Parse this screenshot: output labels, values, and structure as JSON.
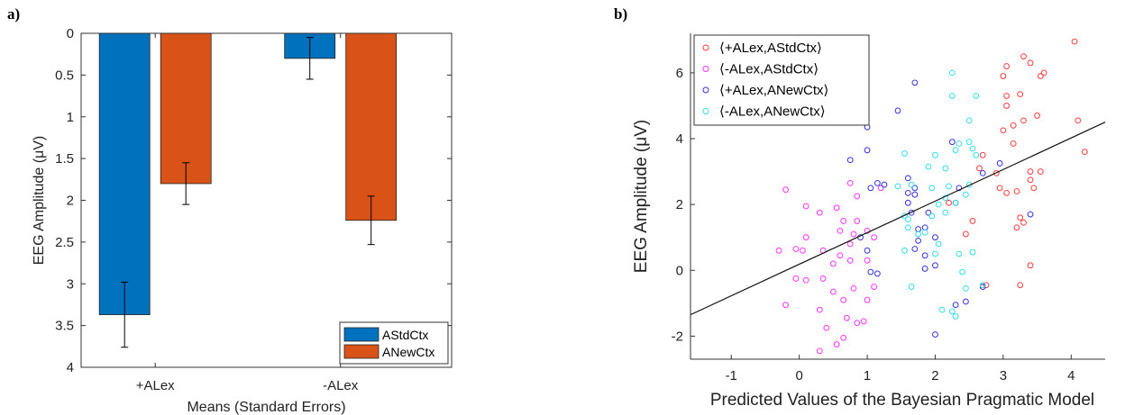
{
  "panels": {
    "a_label": "a)",
    "b_label": "b)"
  },
  "chart_data": [
    {
      "type": "bar",
      "orientation": "reversed-y",
      "title": "",
      "xlabel": "Means (Standard Errors)",
      "ylabel": "EEG Amplitude (μV)",
      "categories": [
        "+ALex",
        "-ALex"
      ],
      "ylim": [
        0,
        4
      ],
      "y_reversed": true,
      "yticks": [
        "0",
        "0.5",
        "1",
        "1.5",
        "2",
        "2.5",
        "3",
        "3.5",
        "4"
      ],
      "legend_position": "bottom-right",
      "series": [
        {
          "name": "AStdCtx",
          "color": "#0072BD",
          "values": [
            3.37,
            0.3
          ],
          "errors": [
            0.39,
            0.25
          ]
        },
        {
          "name": "ANewCtx",
          "color": "#D95319",
          "values": [
            1.8,
            2.24
          ],
          "errors": [
            0.25,
            0.29
          ]
        }
      ]
    },
    {
      "type": "scatter",
      "title": "",
      "xlabel": "Predicted Values of the Bayesian Pragmatic Model",
      "ylabel": "EEG Amplitude (μV)",
      "xlim": [
        -1.6,
        4.5
      ],
      "ylim": [
        -2.7,
        7.2
      ],
      "xticks": [
        "-1",
        "0",
        "1",
        "2",
        "3",
        "4"
      ],
      "yticks": [
        "-2",
        "0",
        "2",
        "4",
        "6"
      ],
      "legend_position": "top-left",
      "fit_line": {
        "x": [
          -1.6,
          4.5
        ],
        "y": [
          -1.35,
          4.5
        ]
      },
      "series": [
        {
          "name": "⟨+ALex,AStdCtx⟩",
          "color": "#FF3B3B",
          "points": [
            [
              4.05,
              6.95
            ],
            [
              3.3,
              6.5
            ],
            [
              3.4,
              6.3
            ],
            [
              3.6,
              6.0
            ],
            [
              3.55,
              5.9
            ],
            [
              3.05,
              6.2
            ],
            [
              3.0,
              5.9
            ],
            [
              3.05,
              5.3
            ],
            [
              3.05,
              5.0
            ],
            [
              3.25,
              5.35
            ],
            [
              3.15,
              4.4
            ],
            [
              3.3,
              4.55
            ],
            [
              3.0,
              4.25
            ],
            [
              3.5,
              4.7
            ],
            [
              4.1,
              4.55
            ],
            [
              3.15,
              3.85
            ],
            [
              4.2,
              3.6
            ],
            [
              2.7,
              3.5
            ],
            [
              2.65,
              3.1
            ],
            [
              2.9,
              2.95
            ],
            [
              3.4,
              3.0
            ],
            [
              3.55,
              3.0
            ],
            [
              3.4,
              2.75
            ],
            [
              3.45,
              2.5
            ],
            [
              2.95,
              2.5
            ],
            [
              3.05,
              2.35
            ],
            [
              3.2,
              2.4
            ],
            [
              2.2,
              2.05
            ],
            [
              2.55,
              1.5
            ],
            [
              3.25,
              1.6
            ],
            [
              3.3,
              1.45
            ],
            [
              3.2,
              1.3
            ],
            [
              2.45,
              1.1
            ],
            [
              3.4,
              0.15
            ],
            [
              3.25,
              -0.45
            ],
            [
              2.75,
              -0.45
            ]
          ]
        },
        {
          "name": "⟨-ALex,AStdCtx⟩",
          "color": "#FF33FF",
          "points": [
            [
              -0.2,
              2.45
            ],
            [
              0.1,
              1.95
            ],
            [
              0.3,
              1.75
            ],
            [
              0.55,
              1.9
            ],
            [
              0.65,
              1.5
            ],
            [
              0.85,
              1.5
            ],
            [
              0.6,
              1.2
            ],
            [
              0.8,
              1.1
            ],
            [
              1.0,
              1.2
            ],
            [
              1.1,
              1.0
            ],
            [
              0.1,
              1.0
            ],
            [
              -0.3,
              0.6
            ],
            [
              -0.05,
              0.65
            ],
            [
              0.05,
              0.6
            ],
            [
              0.35,
              0.6
            ],
            [
              0.6,
              0.45
            ],
            [
              0.75,
              0.8
            ],
            [
              0.5,
              0.2
            ],
            [
              0.75,
              0.3
            ],
            [
              1.0,
              0.3
            ],
            [
              0.35,
              -0.25
            ],
            [
              0.1,
              -0.3
            ],
            [
              -0.05,
              -0.25
            ],
            [
              0.5,
              -0.65
            ],
            [
              0.8,
              -0.55
            ],
            [
              1.1,
              -0.5
            ],
            [
              0.65,
              -0.9
            ],
            [
              1.0,
              -0.9
            ],
            [
              -0.2,
              -1.05
            ],
            [
              0.3,
              -1.2
            ],
            [
              0.7,
              -1.45
            ],
            [
              0.85,
              -1.6
            ],
            [
              0.95,
              -1.55
            ],
            [
              0.4,
              -1.75
            ],
            [
              0.65,
              -2.05
            ],
            [
              0.55,
              -2.25
            ],
            [
              0.3,
              -2.45
            ],
            [
              0.85,
              2.25
            ],
            [
              0.75,
              2.65
            ],
            [
              1.2,
              2.5
            ]
          ]
        },
        {
          "name": "⟨+ALex,ANewCtx⟩",
          "color": "#3333DD",
          "points": [
            [
              1.7,
              5.7
            ],
            [
              1.0,
              4.35
            ],
            [
              1.45,
              4.85
            ],
            [
              1.0,
              3.65
            ],
            [
              2.25,
              3.9
            ],
            [
              1.05,
              2.5
            ],
            [
              1.15,
              2.65
            ],
            [
              1.25,
              2.6
            ],
            [
              1.6,
              2.8
            ],
            [
              1.7,
              2.5
            ],
            [
              0.75,
              3.35
            ],
            [
              1.6,
              2.35
            ],
            [
              1.7,
              2.3
            ],
            [
              1.6,
              2.05
            ],
            [
              1.65,
              1.75
            ],
            [
              1.9,
              1.75
            ],
            [
              2.3,
              2.05
            ],
            [
              2.35,
              2.5
            ],
            [
              2.7,
              2.95
            ],
            [
              2.95,
              3.25
            ],
            [
              3.4,
              1.7
            ],
            [
              1.75,
              1.25
            ],
            [
              1.85,
              1.3
            ],
            [
              2.0,
              1.0
            ],
            [
              1.75,
              0.9
            ],
            [
              1.7,
              0.65
            ],
            [
              1.85,
              0.45
            ],
            [
              2.0,
              0.15
            ],
            [
              1.85,
              0.05
            ],
            [
              1.05,
              -0.05
            ],
            [
              1.15,
              -0.1
            ],
            [
              2.0,
              -1.95
            ],
            [
              2.7,
              -0.5
            ],
            [
              2.45,
              -0.95
            ],
            [
              2.3,
              -1.05
            ],
            [
              1.0,
              0.6
            ],
            [
              0.9,
              1.0
            ]
          ]
        },
        {
          "name": "⟨-ALex,ANewCtx⟩",
          "color": "#33DDEE",
          "points": [
            [
              2.25,
              6.0
            ],
            [
              2.25,
              5.3
            ],
            [
              2.6,
              5.3
            ],
            [
              2.5,
              4.55
            ],
            [
              2.35,
              3.85
            ],
            [
              2.5,
              3.9
            ],
            [
              2.0,
              3.5
            ],
            [
              2.55,
              3.7
            ],
            [
              2.6,
              3.5
            ],
            [
              2.3,
              3.65
            ],
            [
              1.55,
              3.55
            ],
            [
              1.9,
              3.15
            ],
            [
              2.15,
              3.1
            ],
            [
              1.45,
              2.55
            ],
            [
              1.65,
              2.6
            ],
            [
              2.2,
              2.55
            ],
            [
              2.5,
              2.6
            ],
            [
              2.45,
              2.3
            ],
            [
              1.95,
              2.5
            ],
            [
              2.15,
              2.2
            ],
            [
              2.3,
              2.05
            ],
            [
              2.05,
              2.0
            ],
            [
              2.15,
              1.75
            ],
            [
              1.95,
              1.65
            ],
            [
              1.55,
              1.65
            ],
            [
              1.6,
              1.55
            ],
            [
              1.6,
              1.3
            ],
            [
              1.75,
              1.1
            ],
            [
              1.85,
              1.15
            ],
            [
              2.05,
              0.8
            ],
            [
              1.55,
              0.6
            ],
            [
              2.35,
              0.5
            ],
            [
              2.55,
              0.55
            ],
            [
              2.4,
              -0.05
            ],
            [
              2.45,
              -0.55
            ],
            [
              2.7,
              -0.45
            ],
            [
              2.25,
              -1.25
            ],
            [
              2.3,
              -1.4
            ],
            [
              2.1,
              -1.2
            ],
            [
              1.65,
              -0.5
            ],
            [
              2.0,
              0.5
            ]
          ]
        }
      ]
    }
  ]
}
